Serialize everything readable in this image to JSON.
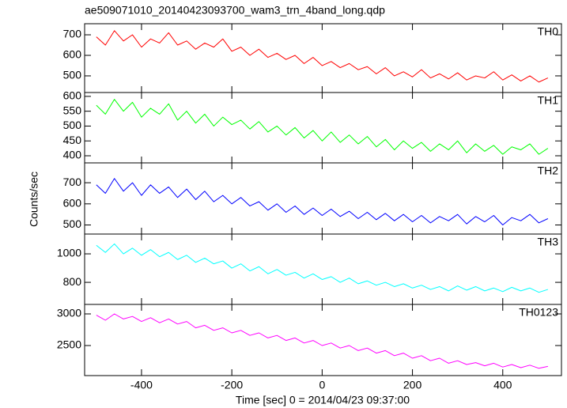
{
  "title": "ae509071010_20140423093700_wam3_trn_4band_long.qdp",
  "x_label": "Time [sec] 0 = 2014/04/23 09:37:00",
  "y_label": "Counts/sec",
  "chart_data": [
    {
      "type": "line",
      "x": [
        -500,
        -480,
        -460,
        -440,
        -420,
        -400,
        -380,
        -360,
        -340,
        -320,
        -300,
        -280,
        -260,
        -240,
        -220,
        -200,
        -180,
        -160,
        -140,
        -120,
        -100,
        -80,
        -60,
        -40,
        -20,
        0,
        20,
        40,
        60,
        80,
        100,
        120,
        140,
        160,
        180,
        200,
        220,
        240,
        260,
        280,
        300,
        320,
        340,
        360,
        380,
        400,
        420,
        440,
        460,
        480,
        500
      ],
      "series": [
        {
          "name": "TH0",
          "color": "#ff0000",
          "values": [
            690,
            650,
            720,
            670,
            700,
            640,
            680,
            660,
            710,
            650,
            670,
            630,
            660,
            640,
            680,
            620,
            640,
            600,
            630,
            590,
            610,
            580,
            600,
            560,
            590,
            550,
            570,
            540,
            560,
            530,
            545,
            510,
            540,
            500,
            520,
            495,
            530,
            490,
            510,
            485,
            515,
            480,
            500,
            490,
            520,
            480,
            505,
            475,
            500,
            470,
            490
          ]
        }
      ],
      "xlim": [
        -526,
        530
      ],
      "ylim": [
        419,
        754
      ],
      "yticks": [
        500,
        600,
        700
      ]
    },
    {
      "type": "line",
      "x": [
        -500,
        -480,
        -460,
        -440,
        -420,
        -400,
        -380,
        -360,
        -340,
        -320,
        -300,
        -280,
        -260,
        -240,
        -220,
        -200,
        -180,
        -160,
        -140,
        -120,
        -100,
        -80,
        -60,
        -40,
        -20,
        0,
        20,
        40,
        60,
        80,
        100,
        120,
        140,
        160,
        180,
        200,
        220,
        240,
        260,
        280,
        300,
        320,
        340,
        360,
        380,
        400,
        420,
        440,
        460,
        480,
        500
      ],
      "series": [
        {
          "name": "TH1",
          "color": "#00ff00",
          "values": [
            570,
            540,
            590,
            550,
            580,
            530,
            560,
            540,
            575,
            520,
            550,
            510,
            540,
            500,
            530,
            505,
            520,
            490,
            515,
            480,
            500,
            470,
            495,
            460,
            485,
            450,
            480,
            445,
            470,
            440,
            465,
            430,
            455,
            420,
            450,
            425,
            445,
            415,
            440,
            420,
            450,
            410,
            440,
            415,
            435,
            405,
            430,
            420,
            440,
            405,
            425
          ]
        }
      ],
      "xlim": [
        -526,
        530
      ],
      "ylim": [
        376,
        613
      ],
      "yticks": [
        400,
        450,
        500,
        550,
        600
      ]
    },
    {
      "type": "line",
      "x": [
        -500,
        -480,
        -460,
        -440,
        -420,
        -400,
        -380,
        -360,
        -340,
        -320,
        -300,
        -280,
        -260,
        -240,
        -220,
        -200,
        -180,
        -160,
        -140,
        -120,
        -100,
        -80,
        -60,
        -40,
        -20,
        0,
        20,
        40,
        60,
        80,
        100,
        120,
        140,
        160,
        180,
        200,
        220,
        240,
        260,
        280,
        300,
        320,
        340,
        360,
        380,
        400,
        420,
        440,
        460,
        480,
        500
      ],
      "series": [
        {
          "name": "TH2",
          "color": "#0000ff",
          "values": [
            690,
            650,
            720,
            660,
            700,
            640,
            690,
            650,
            680,
            630,
            670,
            620,
            660,
            610,
            640,
            600,
            630,
            590,
            610,
            570,
            600,
            560,
            590,
            550,
            580,
            545,
            575,
            540,
            565,
            530,
            560,
            525,
            555,
            520,
            550,
            515,
            545,
            510,
            540,
            520,
            550,
            505,
            540,
            515,
            545,
            500,
            535,
            520,
            550,
            510,
            530
          ]
        }
      ],
      "xlim": [
        -526,
        530
      ],
      "ylim": [
        457,
        794
      ],
      "yticks": [
        500,
        600,
        700
      ]
    },
    {
      "type": "line",
      "x": [
        -500,
        -480,
        -460,
        -440,
        -420,
        -400,
        -380,
        -360,
        -340,
        -320,
        -300,
        -280,
        -260,
        -240,
        -220,
        -200,
        -180,
        -160,
        -140,
        -120,
        -100,
        -80,
        -60,
        -40,
        -20,
        0,
        20,
        40,
        60,
        80,
        100,
        120,
        140,
        160,
        180,
        200,
        220,
        240,
        260,
        280,
        300,
        320,
        340,
        360,
        380,
        400,
        420,
        440,
        460,
        480,
        500
      ],
      "series": [
        {
          "name": "TH3",
          "color": "#00ffff",
          "values": [
            1060,
            1010,
            1070,
            1000,
            1040,
            990,
            1030,
            980,
            1010,
            960,
            990,
            940,
            970,
            930,
            950,
            900,
            930,
            880,
            910,
            860,
            890,
            850,
            870,
            830,
            860,
            820,
            840,
            800,
            830,
            790,
            810,
            780,
            800,
            770,
            790,
            760,
            780,
            750,
            770,
            740,
            775,
            745,
            770,
            740,
            760,
            735,
            765,
            740,
            760,
            730,
            750
          ]
        }
      ],
      "xlim": [
        -526,
        530
      ],
      "ylim": [
        645,
        1139
      ],
      "yticks": [
        800,
        1000
      ]
    },
    {
      "type": "line",
      "x": [
        -500,
        -480,
        -460,
        -440,
        -420,
        -400,
        -380,
        -360,
        -340,
        -320,
        -300,
        -280,
        -260,
        -240,
        -220,
        -200,
        -180,
        -160,
        -140,
        -120,
        -100,
        -80,
        -60,
        -40,
        -20,
        0,
        20,
        40,
        60,
        80,
        100,
        120,
        140,
        160,
        180,
        200,
        220,
        240,
        260,
        280,
        300,
        320,
        340,
        360,
        380,
        400,
        420,
        440,
        460,
        480,
        500
      ],
      "series": [
        {
          "name": "TH0123",
          "color": "#ff00ff",
          "values": [
            2980,
            2900,
            3000,
            2920,
            2960,
            2880,
            2940,
            2860,
            2920,
            2840,
            2880,
            2780,
            2820,
            2740,
            2780,
            2700,
            2740,
            2660,
            2700,
            2620,
            2660,
            2580,
            2620,
            2540,
            2580,
            2500,
            2540,
            2460,
            2500,
            2420,
            2460,
            2380,
            2420,
            2340,
            2380,
            2300,
            2340,
            2260,
            2300,
            2220,
            2260,
            2200,
            2230,
            2180,
            2220,
            2160,
            2200,
            2150,
            2190,
            2140,
            2170
          ]
        }
      ],
      "xlim": [
        -526,
        530
      ],
      "ylim": [
        2025,
        3150
      ],
      "yticks": [
        2500,
        3000
      ],
      "xticks": [
        -400,
        -200,
        0,
        200,
        400
      ]
    }
  ]
}
